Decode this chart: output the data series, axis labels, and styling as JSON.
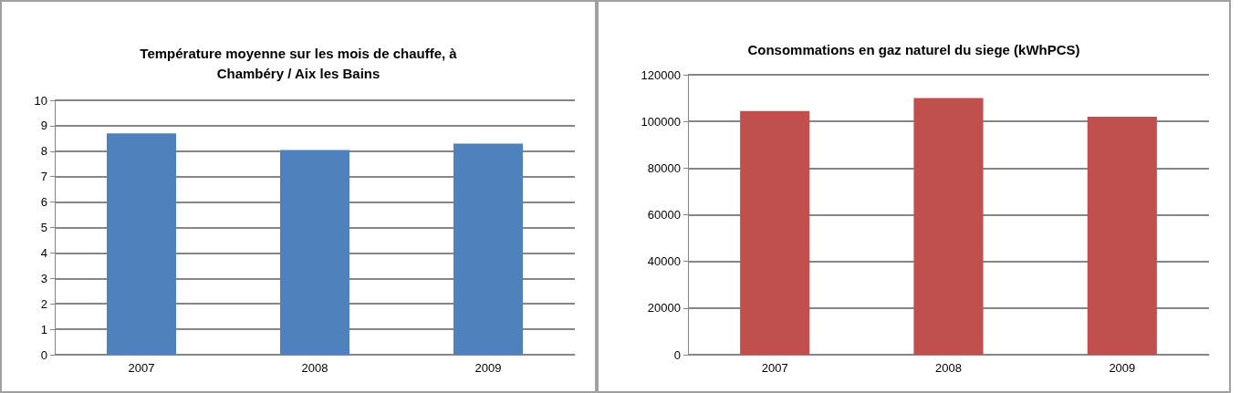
{
  "chart_data": [
    {
      "type": "bar",
      "title": "Température moyenne sur les mois de chauffe, à\nChambéry / Aix les Bains",
      "categories": [
        "2007",
        "2008",
        "2009"
      ],
      "values": [
        8.7,
        8.05,
        8.3
      ],
      "color": "#4f81bd",
      "ylim": [
        0,
        10
      ],
      "yticks": [
        0,
        1,
        2,
        3,
        4,
        5,
        6,
        7,
        8,
        9,
        10
      ],
      "grid": "y"
    },
    {
      "type": "bar",
      "title": "Consommations en gaz naturel du siege (kWhPCS)",
      "categories": [
        "2007",
        "2008",
        "2009"
      ],
      "values": [
        104500,
        110000,
        102000
      ],
      "color": "#c0504d",
      "ylim": [
        0,
        120000
      ],
      "yticks": [
        0,
        20000,
        40000,
        60000,
        80000,
        100000,
        120000
      ],
      "grid": "y"
    }
  ]
}
